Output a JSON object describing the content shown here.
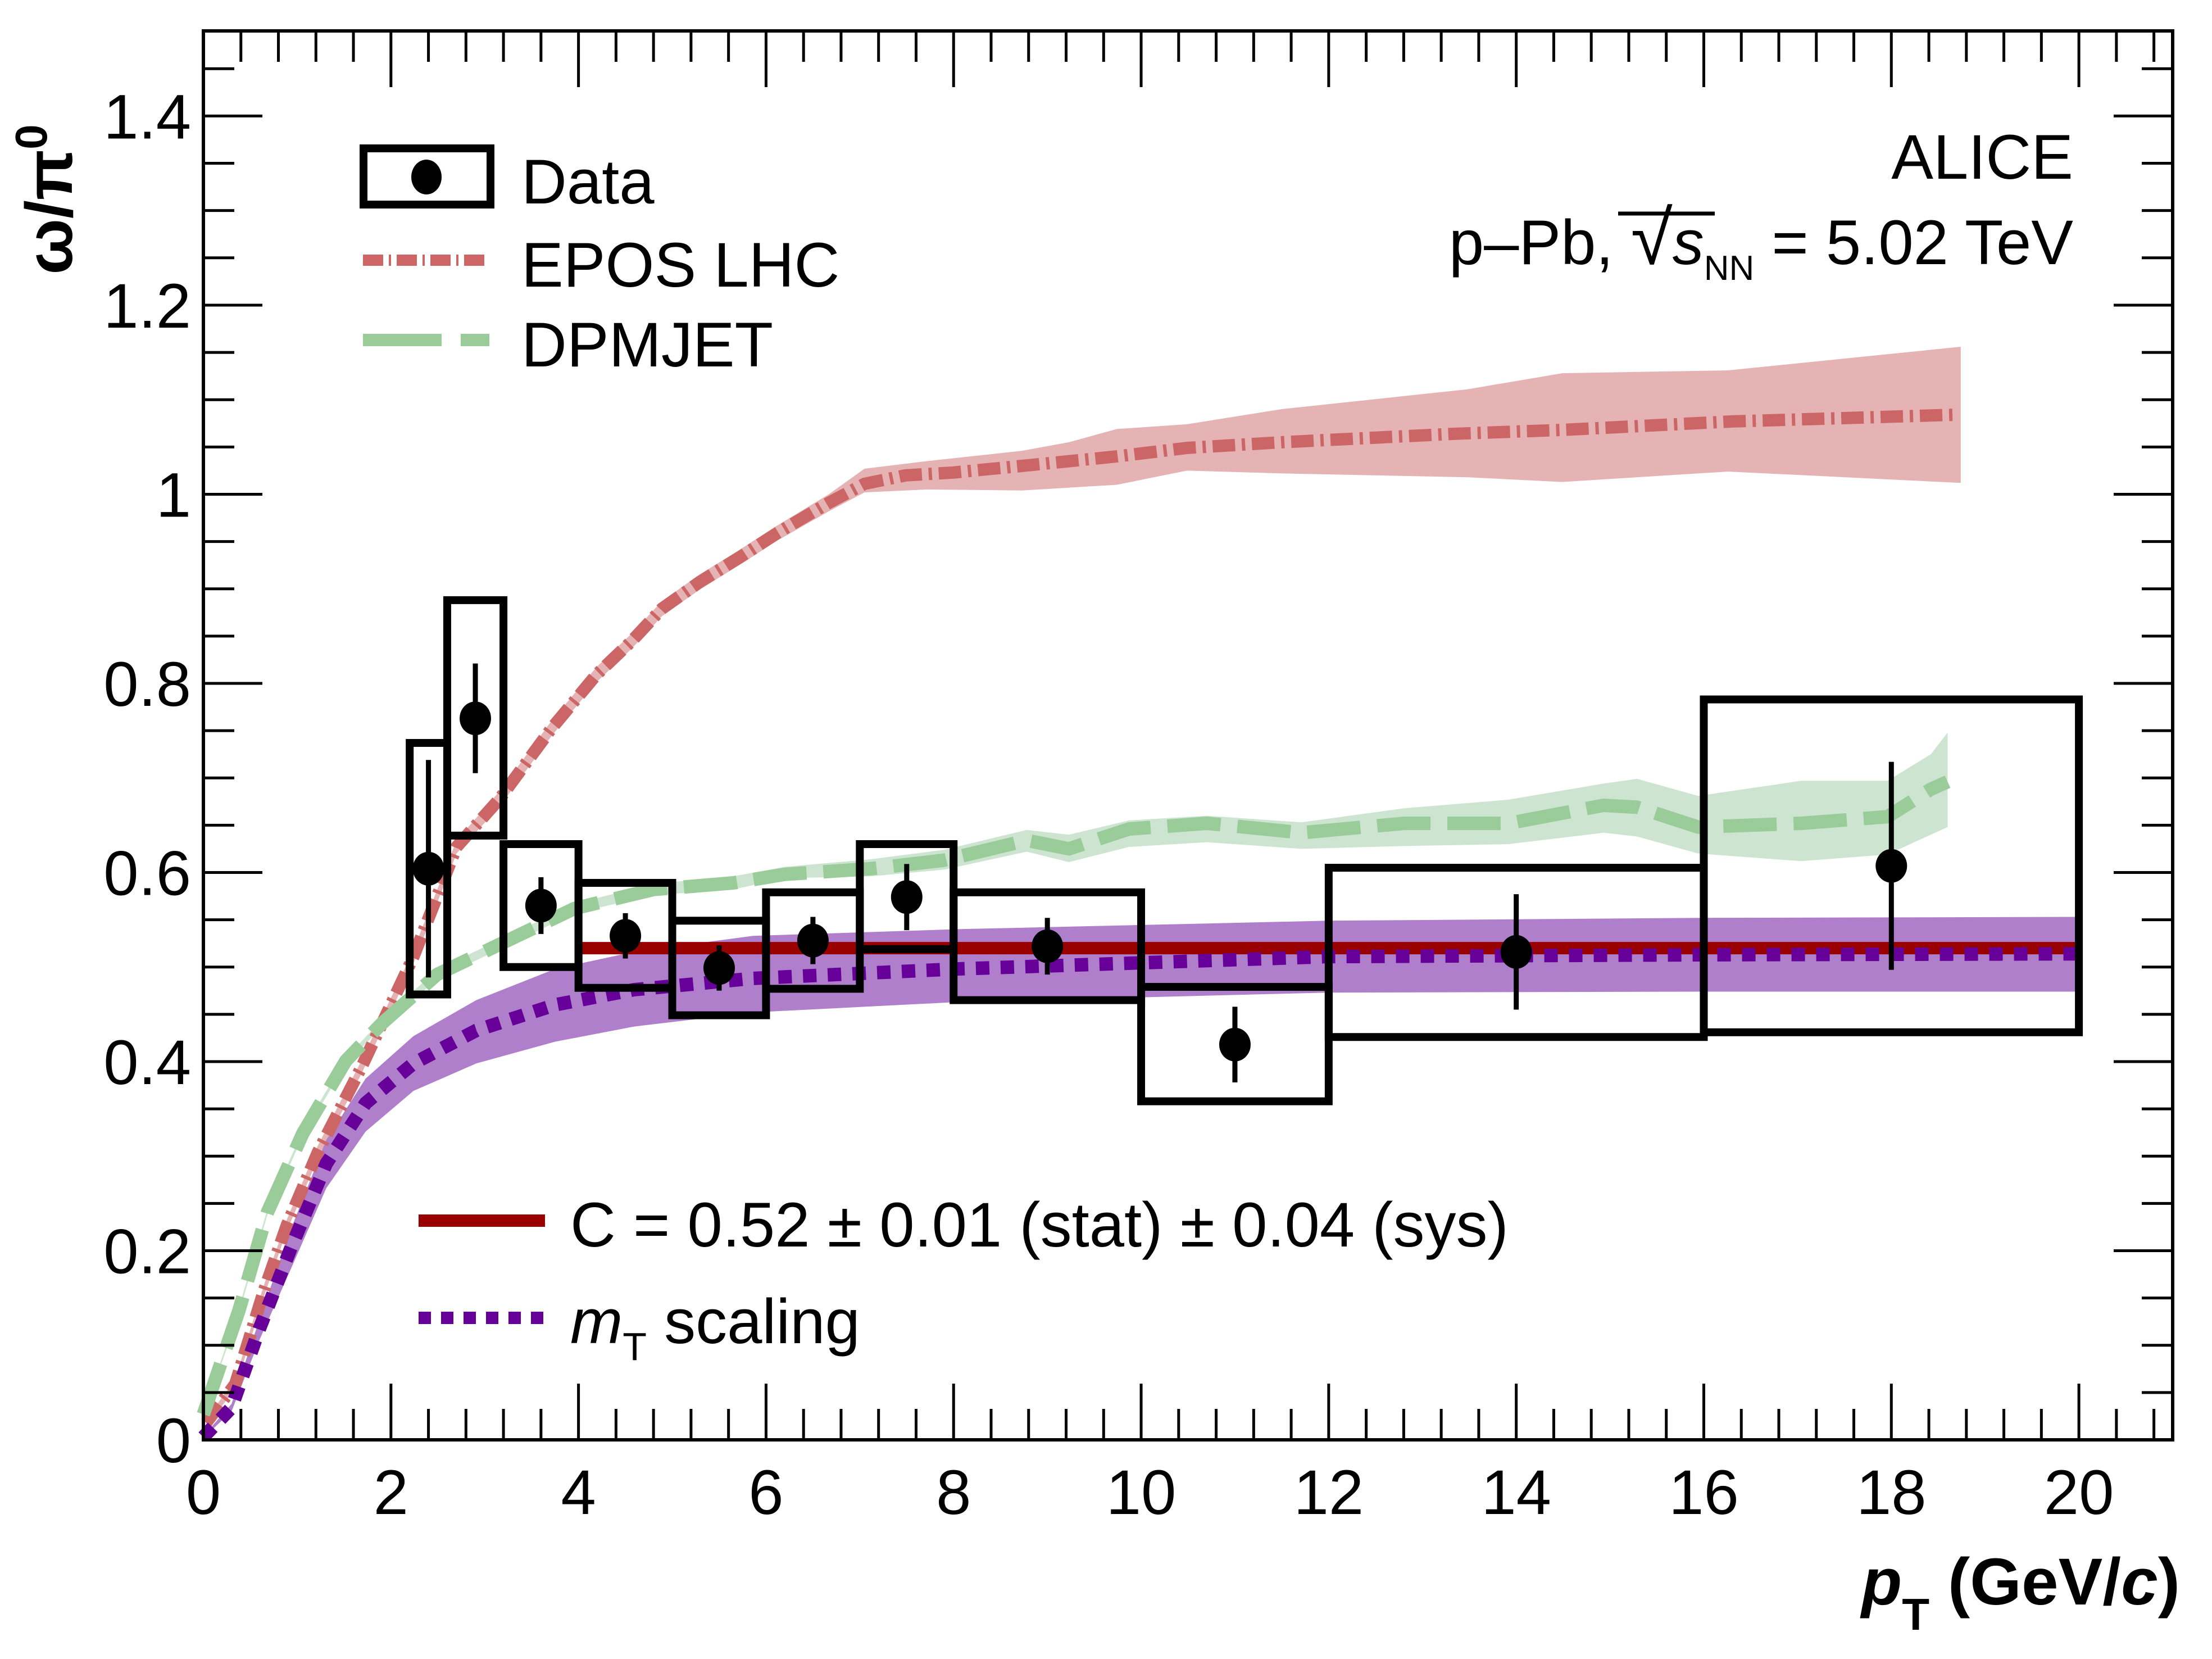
{
  "chart_data": {
    "type": "scatter",
    "title": "",
    "xlabel": "p_T (GeV/c)",
    "xlabel_parts": {
      "main": "p",
      "sub": "T",
      "rest": " (GeV/",
      "italic": "c",
      "close": ")"
    },
    "ylabel": "ω/π⁰",
    "ylabel_parts": {
      "main": "ω/π",
      "sup": "0"
    },
    "xlim": [
      0,
      21
    ],
    "ylim": [
      0,
      1.49
    ],
    "grid": false,
    "x_ticks": [
      0,
      2,
      4,
      6,
      8,
      10,
      12,
      14,
      16,
      18,
      20
    ],
    "x_tick_labels": [
      "0",
      "2",
      "4",
      "6",
      "8",
      "10",
      "12",
      "14",
      "16",
      "18",
      "20"
    ],
    "y_ticks": [
      0,
      0.2,
      0.4,
      0.6,
      0.8,
      1.0,
      1.2,
      1.4
    ],
    "y_tick_labels": [
      "0",
      "0.2",
      "0.4",
      "0.6",
      "0.8",
      "1",
      "1.2",
      "1.4"
    ],
    "annotations": {
      "experiment": "ALICE",
      "system_prefix": "p–Pb, ",
      "sqrt_symbol": "√",
      "energy_var": "s",
      "energy_sub": "NN",
      "energy_value": " = 5.02 TeV"
    },
    "legend": {
      "placement": "top-left",
      "entries": [
        {
          "label": "Data",
          "style": "marker-box"
        },
        {
          "label": "EPOS LHC",
          "style": "dash-dot",
          "color": "#cc6666"
        },
        {
          "label": "DPMJET",
          "style": "dashed",
          "color": "#99cc99"
        }
      ]
    },
    "legend2": {
      "placement": "bottom-left",
      "entries": [
        {
          "label": "C = 0.52 ± 0.01 (stat) ± 0.04 (sys)",
          "style": "solid",
          "color": "#990000"
        },
        {
          "label_italic": "m",
          "label_sub": "T",
          "label_rest": " scaling",
          "style": "dotted",
          "color": "#660099"
        }
      ]
    },
    "data": {
      "name": "Data",
      "points": [
        {
          "x": 2.4,
          "xlo": 2.2,
          "xhi": 2.6,
          "y": 0.604,
          "stat": 0.115,
          "sys_lo": 0.471,
          "sys_hi": 0.737
        },
        {
          "x": 2.9,
          "xlo": 2.6,
          "xhi": 3.2,
          "y": 0.763,
          "stat": 0.058,
          "sys_lo": 0.639,
          "sys_hi": 0.888
        },
        {
          "x": 3.6,
          "xlo": 3.2,
          "xhi": 4.0,
          "y": 0.565,
          "stat": 0.03,
          "sys_lo": 0.5,
          "sys_hi": 0.63
        },
        {
          "x": 4.5,
          "xlo": 4.0,
          "xhi": 5.0,
          "y": 0.533,
          "stat": 0.024,
          "sys_lo": 0.478,
          "sys_hi": 0.589
        },
        {
          "x": 5.5,
          "xlo": 5.0,
          "xhi": 6.0,
          "y": 0.499,
          "stat": 0.024,
          "sys_lo": 0.449,
          "sys_hi": 0.549
        },
        {
          "x": 6.5,
          "xlo": 6.0,
          "xhi": 7.0,
          "y": 0.528,
          "stat": 0.025,
          "sys_lo": 0.477,
          "sys_hi": 0.579
        },
        {
          "x": 7.5,
          "xlo": 7.0,
          "xhi": 8.0,
          "y": 0.574,
          "stat": 0.035,
          "sys_lo": 0.519,
          "sys_hi": 0.63
        },
        {
          "x": 9.0,
          "xlo": 8.0,
          "xhi": 10.0,
          "y": 0.522,
          "stat": 0.03,
          "sys_lo": 0.465,
          "sys_hi": 0.579
        },
        {
          "x": 11.0,
          "xlo": 10.0,
          "xhi": 12.0,
          "y": 0.418,
          "stat": 0.04,
          "sys_lo": 0.358,
          "sys_hi": 0.479
        },
        {
          "x": 14.0,
          "xlo": 12.0,
          "xhi": 16.0,
          "y": 0.516,
          "stat": 0.061,
          "sys_lo": 0.426,
          "sys_hi": 0.605
        },
        {
          "x": 18.0,
          "xlo": 16.0,
          "xhi": 20.0,
          "y": 0.607,
          "stat": 0.11,
          "sys_lo": 0.431,
          "sys_hi": 0.783
        }
      ]
    },
    "series": [
      {
        "name": "EPOS LHC",
        "color": "#cc6666",
        "band_color": "#e5b3b3",
        "style": "dash-dot",
        "x": [
          0.03,
          0.34,
          0.64,
          0.89,
          1.22,
          1.69,
          2.24,
          2.7,
          3.16,
          3.71,
          4.19,
          4.57,
          4.89,
          5.29,
          5.73,
          6.12,
          6.67,
          7.05,
          7.49,
          8.0,
          8.73,
          9.74,
          10.49,
          11.5,
          13.35,
          14.49,
          16.3,
          18.66
        ],
        "y": [
          0.018,
          0.059,
          0.156,
          0.227,
          0.304,
          0.395,
          0.511,
          0.627,
          0.678,
          0.752,
          0.809,
          0.845,
          0.879,
          0.907,
          0.934,
          0.959,
          0.991,
          1.011,
          1.02,
          1.023,
          1.03,
          1.04,
          1.049,
          1.055,
          1.064,
          1.068,
          1.077,
          1.084
        ],
        "band_x": [
          0.03,
          0.34,
          0.64,
          0.89,
          1.22,
          1.69,
          2.24,
          2.7,
          3.16,
          3.71,
          4.19,
          4.57,
          4.89,
          5.29,
          5.73,
          6.12,
          6.67,
          7.05,
          7.71,
          8.73,
          9.23,
          9.74,
          10.49,
          11.5,
          13.48,
          14.49,
          16.26,
          18.74
        ],
        "band_hi": [
          0.022,
          0.064,
          0.162,
          0.233,
          0.311,
          0.402,
          0.518,
          0.634,
          0.686,
          0.76,
          0.817,
          0.853,
          0.887,
          0.915,
          0.942,
          0.967,
          1.0,
          1.027,
          1.035,
          1.046,
          1.055,
          1.069,
          1.074,
          1.09,
          1.111,
          1.128,
          1.131,
          1.156
        ],
        "band_lo": [
          0.014,
          0.054,
          0.15,
          0.221,
          0.297,
          0.388,
          0.504,
          0.62,
          0.67,
          0.744,
          0.801,
          0.837,
          0.871,
          0.899,
          0.926,
          0.951,
          0.982,
          1.002,
          1.005,
          1.004,
          1.007,
          1.01,
          1.025,
          1.022,
          1.018,
          1.013,
          1.024,
          1.012
        ]
      },
      {
        "name": "DPMJET",
        "color": "#99cc99",
        "band_color": "#cde5d0",
        "style": "dashed",
        "x": [
          0.0,
          0.38,
          0.68,
          1.06,
          1.52,
          1.9,
          2.49,
          3.16,
          3.96,
          4.8,
          5.65,
          6.2,
          7.12,
          7.9,
          8.78,
          9.23,
          9.87,
          10.7,
          11.71,
          12.81,
          13.92,
          14.93,
          15.29,
          15.94,
          17.04,
          17.96,
          18.42,
          18.6
        ],
        "y": [
          0.027,
          0.137,
          0.24,
          0.324,
          0.401,
          0.44,
          0.492,
          0.524,
          0.562,
          0.582,
          0.589,
          0.598,
          0.604,
          0.613,
          0.634,
          0.625,
          0.646,
          0.652,
          0.642,
          0.652,
          0.652,
          0.671,
          0.669,
          0.648,
          0.652,
          0.659,
          0.688,
          0.696
        ],
        "band_hi": [
          0.029,
          0.14,
          0.243,
          0.327,
          0.404,
          0.444,
          0.497,
          0.529,
          0.567,
          0.588,
          0.596,
          0.606,
          0.614,
          0.624,
          0.645,
          0.64,
          0.655,
          0.66,
          0.653,
          0.668,
          0.677,
          0.694,
          0.699,
          0.681,
          0.697,
          0.697,
          0.725,
          0.748
        ],
        "band_lo": [
          0.025,
          0.134,
          0.237,
          0.321,
          0.398,
          0.436,
          0.487,
          0.519,
          0.557,
          0.576,
          0.582,
          0.594,
          0.596,
          0.603,
          0.622,
          0.611,
          0.627,
          0.632,
          0.625,
          0.628,
          0.63,
          0.642,
          0.638,
          0.62,
          0.612,
          0.619,
          0.64,
          0.648
        ]
      },
      {
        "name": "m_T scaling",
        "color": "#660099",
        "band_color": "#b07fcb",
        "style": "dotted",
        "x": [
          0.0,
          0.3,
          0.6,
          0.93,
          1.31,
          1.73,
          2.24,
          2.91,
          3.75,
          4.59,
          5.86,
          8.04,
          11.99,
          16.0,
          20.0
        ],
        "y": [
          0.003,
          0.034,
          0.118,
          0.202,
          0.292,
          0.356,
          0.398,
          0.433,
          0.46,
          0.476,
          0.488,
          0.498,
          0.511,
          0.513,
          0.514
        ],
        "band_hi": [
          0.004,
          0.038,
          0.128,
          0.222,
          0.317,
          0.382,
          0.427,
          0.465,
          0.498,
          0.516,
          0.533,
          0.54,
          0.549,
          0.552,
          0.553
        ],
        "band_lo": [
          0.002,
          0.03,
          0.106,
          0.18,
          0.266,
          0.326,
          0.369,
          0.398,
          0.421,
          0.437,
          0.452,
          0.463,
          0.473,
          0.474,
          0.474
        ]
      },
      {
        "name": "C fit",
        "color": "#990000",
        "style": "solid",
        "x": [
          4.0,
          20.0
        ],
        "y": [
          0.52,
          0.52
        ]
      }
    ]
  }
}
